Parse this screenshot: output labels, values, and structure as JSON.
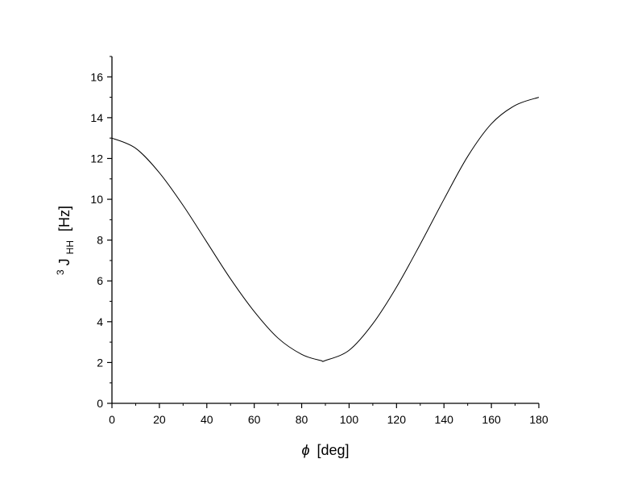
{
  "chart_data": {
    "type": "line",
    "title": "",
    "xlabel": {
      "symbol": "ϕ",
      "unit": "[deg]"
    },
    "ylabel": {
      "superscript": "3",
      "base": "J",
      "subscript": "HH",
      "unit": "[Hz]"
    },
    "xlim": [
      0,
      180
    ],
    "ylim": [
      0,
      17
    ],
    "x_ticks": [
      0,
      20,
      40,
      60,
      80,
      100,
      120,
      140,
      160,
      180
    ],
    "y_ticks": [
      0,
      2,
      4,
      6,
      8,
      10,
      12,
      14,
      16
    ],
    "grid": false,
    "line_color": "#000000",
    "series": [
      {
        "x": [
          0,
          10,
          20,
          30,
          40,
          50,
          60,
          70,
          80,
          88,
          90,
          100,
          110,
          120,
          130,
          140,
          150,
          160,
          170,
          180
        ],
        "y": [
          13.0,
          12.5,
          11.3,
          9.7,
          7.9,
          6.1,
          4.5,
          3.2,
          2.4,
          2.1,
          2.1,
          2.6,
          3.9,
          5.7,
          7.8,
          10.0,
          12.1,
          13.7,
          14.6,
          15.0
        ]
      }
    ]
  }
}
